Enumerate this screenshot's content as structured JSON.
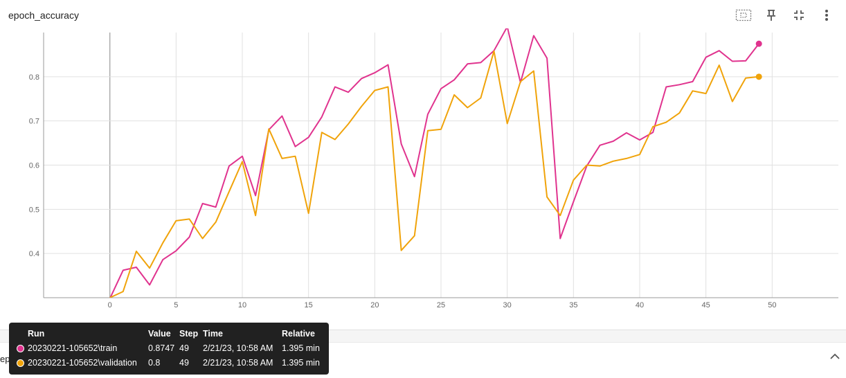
{
  "panel": {
    "title": "epoch_accuracy"
  },
  "next_panel": {
    "title": "epoch_loss"
  },
  "toolbar": [
    "fit-domain-icon",
    "pin-icon",
    "fullscreen-icon",
    "more-vert-icon"
  ],
  "colors": {
    "train": "#e0338e",
    "validation": "#f0a30a",
    "grid": "#e0e0e0",
    "axis": "#999999"
  },
  "tooltip": {
    "headers": {
      "run": "Run",
      "value": "Value",
      "step": "Step",
      "time": "Time",
      "relative": "Relative"
    },
    "rows": [
      {
        "run": "20230221-105652\\train",
        "value": "0.8747",
        "step": "49",
        "time": "2/21/23, 10:58 AM",
        "relative": "1.395 min"
      },
      {
        "run": "20230221-105652\\validation",
        "value": "0.8",
        "step": "49",
        "time": "2/21/23, 10:58 AM",
        "relative": "1.395 min"
      }
    ]
  },
  "chart_data": {
    "type": "line",
    "title": "epoch_accuracy",
    "xlabel": "",
    "ylabel": "",
    "xlim": [
      -5,
      55
    ],
    "ylim": [
      0.3,
      0.9
    ],
    "x_ticks": [
      0,
      5,
      10,
      15,
      20,
      25,
      30,
      35,
      40,
      45,
      50
    ],
    "y_ticks": [
      0.4,
      0.5,
      0.6,
      0.7,
      0.8
    ],
    "grid": true,
    "x": [
      0,
      1,
      2,
      3,
      4,
      5,
      6,
      7,
      8,
      9,
      10,
      11,
      12,
      13,
      14,
      15,
      16,
      17,
      18,
      19,
      20,
      21,
      22,
      23,
      24,
      25,
      26,
      27,
      28,
      29,
      30,
      31,
      32,
      33,
      34,
      35,
      36,
      37,
      38,
      39,
      40,
      41,
      42,
      43,
      44,
      45,
      46,
      47,
      48,
      49
    ],
    "series": [
      {
        "name": "20230221-105652\\train",
        "key": "train",
        "values": [
          0.298,
          0.362,
          0.369,
          0.329,
          0.386,
          0.406,
          0.437,
          0.513,
          0.505,
          0.598,
          0.62,
          0.531,
          0.68,
          0.711,
          0.642,
          0.663,
          0.709,
          0.777,
          0.765,
          0.796,
          0.809,
          0.827,
          0.648,
          0.574,
          0.715,
          0.773,
          0.793,
          0.829,
          0.832,
          0.859,
          0.913,
          0.787,
          0.893,
          0.842,
          0.434,
          0.517,
          0.598,
          0.645,
          0.654,
          0.673,
          0.657,
          0.674,
          0.777,
          0.782,
          0.789,
          0.844,
          0.859,
          0.835,
          0.836,
          0.8747
        ]
      },
      {
        "name": "20230221-105652\\validation",
        "key": "validation",
        "values": [
          0.3,
          0.314,
          0.405,
          0.367,
          0.424,
          0.474,
          0.478,
          0.434,
          0.471,
          0.54,
          0.608,
          0.486,
          0.682,
          0.615,
          0.62,
          0.491,
          0.674,
          0.658,
          0.693,
          0.733,
          0.769,
          0.777,
          0.407,
          0.44,
          0.678,
          0.681,
          0.759,
          0.73,
          0.752,
          0.858,
          0.694,
          0.789,
          0.813,
          0.528,
          0.486,
          0.566,
          0.6,
          0.598,
          0.609,
          0.615,
          0.624,
          0.687,
          0.697,
          0.718,
          0.768,
          0.762,
          0.826,
          0.744,
          0.797,
          0.8
        ]
      }
    ]
  }
}
